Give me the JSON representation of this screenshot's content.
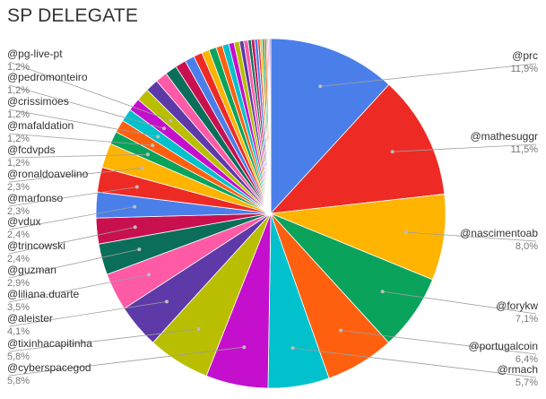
{
  "title": "SP DELEGATE",
  "chart_data": {
    "type": "pie",
    "title": "SP DELEGATE",
    "slices": [
      {
        "name": "@prc",
        "value": 11.9,
        "label": "11,9%",
        "color": "#4a7fea"
      },
      {
        "name": "@mathesuggr",
        "value": 11.5,
        "label": "11,5%",
        "color": "#ee2a24"
      },
      {
        "name": "@nascimentoab",
        "value": 8.0,
        "label": "8,0%",
        "color": "#feb400"
      },
      {
        "name": "@forykw",
        "value": 7.1,
        "label": "7,1%",
        "color": "#0aa35c"
      },
      {
        "name": "@portugalcoin",
        "value": 6.4,
        "label": "6,4%",
        "color": "#ff6010"
      },
      {
        "name": "@rmach",
        "value": 5.7,
        "label": "5,7%",
        "color": "#00c1cc"
      },
      {
        "name": "@cyberspacegod",
        "value": 5.8,
        "label": "5,8%",
        "color": "#c40fcc"
      },
      {
        "name": "@tixinhacapitinha",
        "value": 5.8,
        "label": "5,8%",
        "color": "#b9be00"
      },
      {
        "name": "@aleister",
        "value": 4.1,
        "label": "4,1%",
        "color": "#5d3aa8"
      },
      {
        "name": "@liliana.duarte",
        "value": 3.5,
        "label": "3,5%",
        "color": "#ff5aa5"
      },
      {
        "name": "@guzman",
        "value": 2.9,
        "label": "2,9%",
        "color": "#0b6e5a"
      },
      {
        "name": "@trincowski",
        "value": 2.4,
        "label": "2,4%",
        "color": "#c8104f"
      },
      {
        "name": "@vdux",
        "value": 2.4,
        "label": "2,4%",
        "color": "#4a7fea"
      },
      {
        "name": "@marfonso",
        "value": 2.3,
        "label": "2,3%",
        "color": "#ee2a24"
      },
      {
        "name": "@ronaldoavelino",
        "value": 2.3,
        "label": "2,3%",
        "color": "#feb400"
      },
      {
        "name": "@fcdvpds",
        "value": 1.2,
        "label": "1,2%",
        "color": "#0aa35c"
      },
      {
        "name": "@mafaldation",
        "value": 1.2,
        "label": "1,2%",
        "color": "#ff6010"
      },
      {
        "name": "@crissimoes",
        "value": 1.2,
        "label": "1,2%",
        "color": "#00c1cc"
      },
      {
        "name": "@pedromonteiro",
        "value": 1.2,
        "label": "1,2%",
        "color": "#c40fcc"
      },
      {
        "name": "@pg-live-pt",
        "value": 1.2,
        "label": "1,2%",
        "color": "#b9be00"
      },
      {
        "name": "",
        "value": 1.2,
        "label": "",
        "color": "#5d3aa8"
      },
      {
        "name": "",
        "value": 1.1,
        "label": "",
        "color": "#ff5aa5"
      },
      {
        "name": "",
        "value": 1.1,
        "label": "",
        "color": "#0b6e5a"
      },
      {
        "name": "",
        "value": 1.0,
        "label": "",
        "color": "#c8104f"
      },
      {
        "name": "",
        "value": 0.9,
        "label": "",
        "color": "#4a7fea"
      },
      {
        "name": "",
        "value": 0.8,
        "label": "",
        "color": "#ee2a24"
      },
      {
        "name": "",
        "value": 0.7,
        "label": "",
        "color": "#feb400"
      },
      {
        "name": "",
        "value": 0.7,
        "label": "",
        "color": "#0aa35c"
      },
      {
        "name": "",
        "value": 0.6,
        "label": "",
        "color": "#ff6010"
      },
      {
        "name": "",
        "value": 0.6,
        "label": "",
        "color": "#00c1cc"
      },
      {
        "name": "",
        "value": 0.5,
        "label": "",
        "color": "#c40fcc"
      },
      {
        "name": "",
        "value": 0.5,
        "label": "",
        "color": "#b9be00"
      },
      {
        "name": "",
        "value": 0.4,
        "label": "",
        "color": "#5d3aa8"
      },
      {
        "name": "",
        "value": 0.4,
        "label": "",
        "color": "#ff5aa5"
      },
      {
        "name": "",
        "value": 0.3,
        "label": "",
        "color": "#0b6e5a"
      },
      {
        "name": "",
        "value": 0.3,
        "label": "",
        "color": "#c8104f"
      },
      {
        "name": "",
        "value": 0.3,
        "label": "",
        "color": "#4a7fea"
      },
      {
        "name": "",
        "value": 0.2,
        "label": "",
        "color": "#ee2a24"
      },
      {
        "name": "",
        "value": 0.2,
        "label": "",
        "color": "#feb400"
      },
      {
        "name": "",
        "value": 0.2,
        "label": "",
        "color": "#0aa35c"
      },
      {
        "name": "",
        "value": 0.2,
        "label": "",
        "color": "#ff6010"
      },
      {
        "name": "",
        "value": 0.1,
        "label": "",
        "color": "#00c1cc"
      },
      {
        "name": "",
        "value": 0.1,
        "label": "",
        "color": "#c40fcc"
      },
      {
        "name": "",
        "value": 0.1,
        "label": "",
        "color": "#b9be00"
      },
      {
        "name": "",
        "value": 0.1,
        "label": "",
        "color": "#5d3aa8"
      }
    ]
  }
}
